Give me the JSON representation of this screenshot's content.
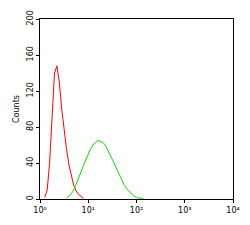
{
  "chart_data": {
    "type": "line",
    "y_label": "Counts",
    "log": "x",
    "x": [
      1.26,
      1.41,
      1.58,
      1.78,
      2.0,
      2.24,
      2.51,
      2.82,
      3.16,
      3.55,
      3.98,
      4.47,
      5.01,
      5.62,
      6.31,
      7.08,
      7.94,
      8.91,
      10,
      11.2,
      12.6,
      14.1,
      15.8,
      17.8,
      20,
      22.4,
      25.1,
      28.2,
      31.6,
      35.5,
      39.8,
      44.7,
      50.1,
      56.2,
      63.1,
      70.8,
      79.4,
      89.1,
      100,
      112,
      126,
      141,
      158
    ],
    "series": [
      {
        "color": "#ff0000",
        "values": [
          2,
          10,
          40,
          95,
          140,
          148,
          130,
          100,
          75,
          55,
          38,
          25,
          15,
          9,
          5,
          3,
          1,
          null,
          null,
          null,
          null,
          null,
          null,
          null,
          null,
          null,
          null,
          null,
          null,
          null,
          null,
          null,
          null,
          null,
          null,
          null,
          null,
          null,
          null,
          null,
          null,
          null,
          null
        ]
      },
      {
        "color": "#00e000",
        "values": [
          null,
          null,
          null,
          null,
          null,
          null,
          null,
          null,
          null,
          1,
          3,
          6,
          10,
          16,
          22,
          30,
          37,
          44,
          50,
          56,
          60,
          63,
          65,
          64,
          63,
          60,
          55,
          50,
          44,
          38,
          32,
          26,
          20,
          15,
          11,
          8,
          5,
          3,
          2,
          1,
          1,
          0,
          null
        ]
      }
    ],
    "xlim": [
      1,
      10000
    ],
    "xticks": [
      {
        "value": 1,
        "label": "10⁰"
      },
      {
        "value": 10,
        "label": "10¹"
      },
      {
        "value": 100,
        "label": "10²"
      },
      {
        "value": 1000,
        "label": "10³"
      },
      {
        "value": 10000,
        "label": "10⁴"
      }
    ],
    "ylim": [
      0,
      200
    ],
    "yticks": [
      0,
      40,
      80,
      120,
      160,
      200
    ],
    "grid": false
  }
}
